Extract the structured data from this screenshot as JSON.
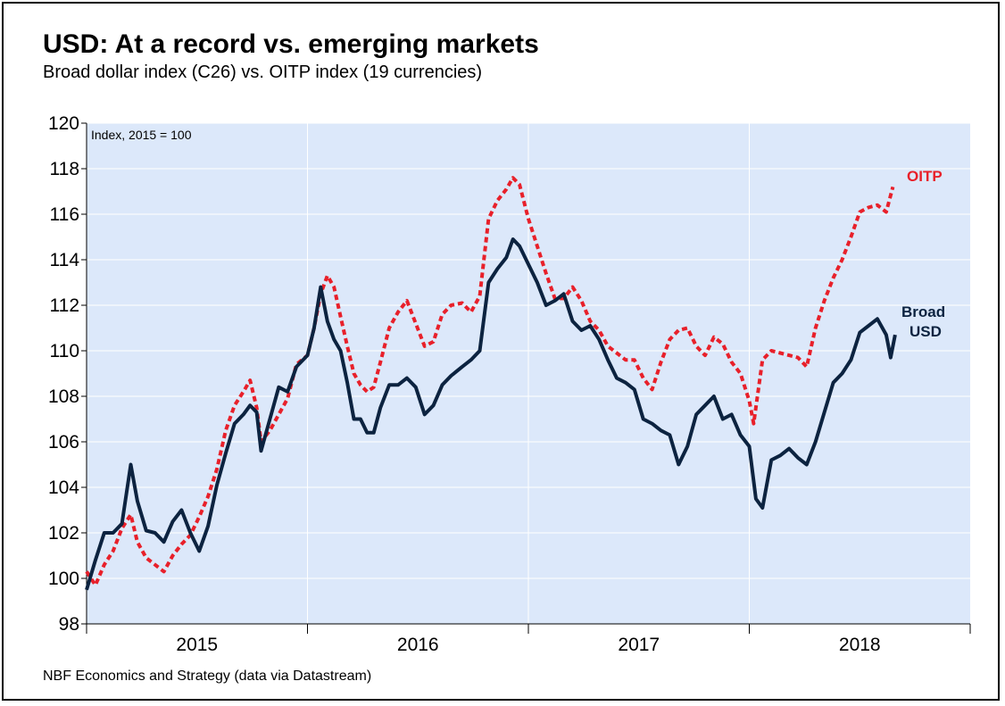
{
  "title": "USD: At a record vs. emerging markets",
  "subtitle": "Broad dollar index (C26) vs. OITP index (19 currencies)",
  "source": "NBF Economics and Strategy (data via Datastream)",
  "chart_data": {
    "type": "line",
    "unit_note": "Index, 2015 = 100",
    "ylim": [
      98,
      120
    ],
    "yticks": [
      98,
      100,
      102,
      104,
      106,
      108,
      110,
      112,
      114,
      116,
      118,
      120
    ],
    "xlim": [
      2015.0,
      2019.0
    ],
    "xtick_labels": [
      "2015",
      "2016",
      "2017",
      "2018"
    ],
    "grid": true,
    "colors": {
      "background": "#dce8fa",
      "broad": "#0c2340",
      "oitp": "#e8202a"
    },
    "series_labels": {
      "oitp": "OITP",
      "broad_line1": "Broad",
      "broad_line2": "USD"
    },
    "series": [
      {
        "name": "OITP",
        "style": "dashed",
        "points": [
          [
            2015.0,
            100.3
          ],
          [
            2015.04,
            99.7
          ],
          [
            2015.08,
            100.6
          ],
          [
            2015.12,
            101.2
          ],
          [
            2015.16,
            102.2
          ],
          [
            2015.2,
            102.8
          ],
          [
            2015.23,
            101.6
          ],
          [
            2015.27,
            100.9
          ],
          [
            2015.31,
            100.6
          ],
          [
            2015.35,
            100.3
          ],
          [
            2015.39,
            101.0
          ],
          [
            2015.43,
            101.5
          ],
          [
            2015.47,
            101.9
          ],
          [
            2015.51,
            102.7
          ],
          [
            2015.55,
            103.6
          ],
          [
            2015.59,
            104.8
          ],
          [
            2015.63,
            106.5
          ],
          [
            2015.67,
            107.6
          ],
          [
            2015.71,
            108.2
          ],
          [
            2015.74,
            108.7
          ],
          [
            2015.77,
            107.5
          ],
          [
            2015.79,
            106.0
          ],
          [
            2015.83,
            106.5
          ],
          [
            2015.87,
            107.2
          ],
          [
            2015.91,
            107.9
          ],
          [
            2015.95,
            109.4
          ],
          [
            2016.0,
            109.8
          ],
          [
            2016.03,
            111.0
          ],
          [
            2016.06,
            112.5
          ],
          [
            2016.09,
            113.3
          ],
          [
            2016.12,
            112.8
          ],
          [
            2016.15,
            111.5
          ],
          [
            2016.18,
            110.2
          ],
          [
            2016.21,
            109.0
          ],
          [
            2016.24,
            108.5
          ],
          [
            2016.27,
            108.2
          ],
          [
            2016.3,
            108.4
          ],
          [
            2016.33,
            109.5
          ],
          [
            2016.37,
            111.0
          ],
          [
            2016.41,
            111.7
          ],
          [
            2016.45,
            112.2
          ],
          [
            2016.49,
            111.2
          ],
          [
            2016.53,
            110.2
          ],
          [
            2016.57,
            110.4
          ],
          [
            2016.61,
            111.6
          ],
          [
            2016.65,
            112.0
          ],
          [
            2016.7,
            112.1
          ],
          [
            2016.74,
            111.7
          ],
          [
            2016.78,
            112.4
          ],
          [
            2016.82,
            115.8
          ],
          [
            2016.86,
            116.6
          ],
          [
            2016.9,
            117.1
          ],
          [
            2016.93,
            117.6
          ],
          [
            2016.96,
            117.3
          ],
          [
            2017.0,
            115.8
          ],
          [
            2017.04,
            114.6
          ],
          [
            2017.08,
            113.4
          ],
          [
            2017.12,
            112.3
          ],
          [
            2017.16,
            112.3
          ],
          [
            2017.2,
            112.8
          ],
          [
            2017.24,
            112.2
          ],
          [
            2017.28,
            111.3
          ],
          [
            2017.32,
            110.9
          ],
          [
            2017.36,
            110.2
          ],
          [
            2017.4,
            109.9
          ],
          [
            2017.44,
            109.6
          ],
          [
            2017.48,
            109.6
          ],
          [
            2017.52,
            108.8
          ],
          [
            2017.56,
            108.3
          ],
          [
            2017.6,
            109.5
          ],
          [
            2017.64,
            110.5
          ],
          [
            2017.68,
            110.9
          ],
          [
            2017.72,
            111.0
          ],
          [
            2017.76,
            110.2
          ],
          [
            2017.8,
            109.8
          ],
          [
            2017.84,
            110.6
          ],
          [
            2017.88,
            110.3
          ],
          [
            2017.92,
            109.5
          ],
          [
            2017.96,
            109.0
          ],
          [
            2018.0,
            107.8
          ],
          [
            2018.02,
            106.8
          ],
          [
            2018.06,
            109.6
          ],
          [
            2018.1,
            110.0
          ],
          [
            2018.14,
            109.9
          ],
          [
            2018.18,
            109.8
          ],
          [
            2018.22,
            109.7
          ],
          [
            2018.26,
            109.3
          ],
          [
            2018.3,
            111.0
          ],
          [
            2018.34,
            112.2
          ],
          [
            2018.38,
            113.2
          ],
          [
            2018.42,
            114.0
          ],
          [
            2018.46,
            115.0
          ],
          [
            2018.5,
            116.1
          ],
          [
            2018.54,
            116.3
          ],
          [
            2018.58,
            116.4
          ],
          [
            2018.62,
            116.1
          ],
          [
            2018.65,
            117.2
          ]
        ]
      },
      {
        "name": "Broad USD",
        "style": "solid",
        "points": [
          [
            2015.0,
            99.5
          ],
          [
            2015.04,
            100.8
          ],
          [
            2015.08,
            102.0
          ],
          [
            2015.12,
            102.0
          ],
          [
            2015.16,
            102.4
          ],
          [
            2015.2,
            105.0
          ],
          [
            2015.23,
            103.4
          ],
          [
            2015.27,
            102.1
          ],
          [
            2015.31,
            102.0
          ],
          [
            2015.35,
            101.6
          ],
          [
            2015.39,
            102.5
          ],
          [
            2015.43,
            103.0
          ],
          [
            2015.47,
            102.0
          ],
          [
            2015.51,
            101.2
          ],
          [
            2015.55,
            102.3
          ],
          [
            2015.59,
            104.1
          ],
          [
            2015.63,
            105.5
          ],
          [
            2015.67,
            106.8
          ],
          [
            2015.71,
            107.2
          ],
          [
            2015.74,
            107.6
          ],
          [
            2015.77,
            107.3
          ],
          [
            2015.79,
            105.6
          ],
          [
            2015.83,
            107.0
          ],
          [
            2015.87,
            108.4
          ],
          [
            2015.91,
            108.2
          ],
          [
            2015.95,
            109.3
          ],
          [
            2016.0,
            109.8
          ],
          [
            2016.03,
            111.0
          ],
          [
            2016.06,
            112.8
          ],
          [
            2016.09,
            111.3
          ],
          [
            2016.12,
            110.5
          ],
          [
            2016.15,
            110.0
          ],
          [
            2016.18,
            108.6
          ],
          [
            2016.21,
            107.0
          ],
          [
            2016.24,
            107.0
          ],
          [
            2016.27,
            106.4
          ],
          [
            2016.3,
            106.4
          ],
          [
            2016.33,
            107.5
          ],
          [
            2016.37,
            108.5
          ],
          [
            2016.41,
            108.5
          ],
          [
            2016.45,
            108.8
          ],
          [
            2016.49,
            108.4
          ],
          [
            2016.53,
            107.2
          ],
          [
            2016.57,
            107.6
          ],
          [
            2016.61,
            108.5
          ],
          [
            2016.65,
            108.9
          ],
          [
            2016.7,
            109.3
          ],
          [
            2016.74,
            109.6
          ],
          [
            2016.78,
            110.0
          ],
          [
            2016.82,
            113.0
          ],
          [
            2016.86,
            113.6
          ],
          [
            2016.9,
            114.1
          ],
          [
            2016.93,
            114.9
          ],
          [
            2016.96,
            114.6
          ],
          [
            2017.0,
            113.8
          ],
          [
            2017.04,
            113.0
          ],
          [
            2017.08,
            112.0
          ],
          [
            2017.12,
            112.2
          ],
          [
            2017.16,
            112.5
          ],
          [
            2017.2,
            111.3
          ],
          [
            2017.24,
            110.9
          ],
          [
            2017.28,
            111.1
          ],
          [
            2017.32,
            110.5
          ],
          [
            2017.36,
            109.6
          ],
          [
            2017.4,
            108.8
          ],
          [
            2017.44,
            108.6
          ],
          [
            2017.48,
            108.3
          ],
          [
            2017.52,
            107.0
          ],
          [
            2017.56,
            106.8
          ],
          [
            2017.6,
            106.5
          ],
          [
            2017.64,
            106.3
          ],
          [
            2017.68,
            105.0
          ],
          [
            2017.72,
            105.8
          ],
          [
            2017.76,
            107.2
          ],
          [
            2017.8,
            107.6
          ],
          [
            2017.84,
            108.0
          ],
          [
            2017.88,
            107.0
          ],
          [
            2017.92,
            107.2
          ],
          [
            2017.96,
            106.3
          ],
          [
            2018.0,
            105.8
          ],
          [
            2018.03,
            103.5
          ],
          [
            2018.06,
            103.1
          ],
          [
            2018.1,
            105.2
          ],
          [
            2018.14,
            105.4
          ],
          [
            2018.18,
            105.7
          ],
          [
            2018.22,
            105.3
          ],
          [
            2018.26,
            105.0
          ],
          [
            2018.3,
            106.0
          ],
          [
            2018.34,
            107.3
          ],
          [
            2018.38,
            108.6
          ],
          [
            2018.42,
            109.0
          ],
          [
            2018.46,
            109.6
          ],
          [
            2018.5,
            110.8
          ],
          [
            2018.54,
            111.1
          ],
          [
            2018.58,
            111.4
          ],
          [
            2018.62,
            110.7
          ],
          [
            2018.64,
            109.7
          ],
          [
            2018.66,
            110.7
          ]
        ]
      }
    ]
  }
}
